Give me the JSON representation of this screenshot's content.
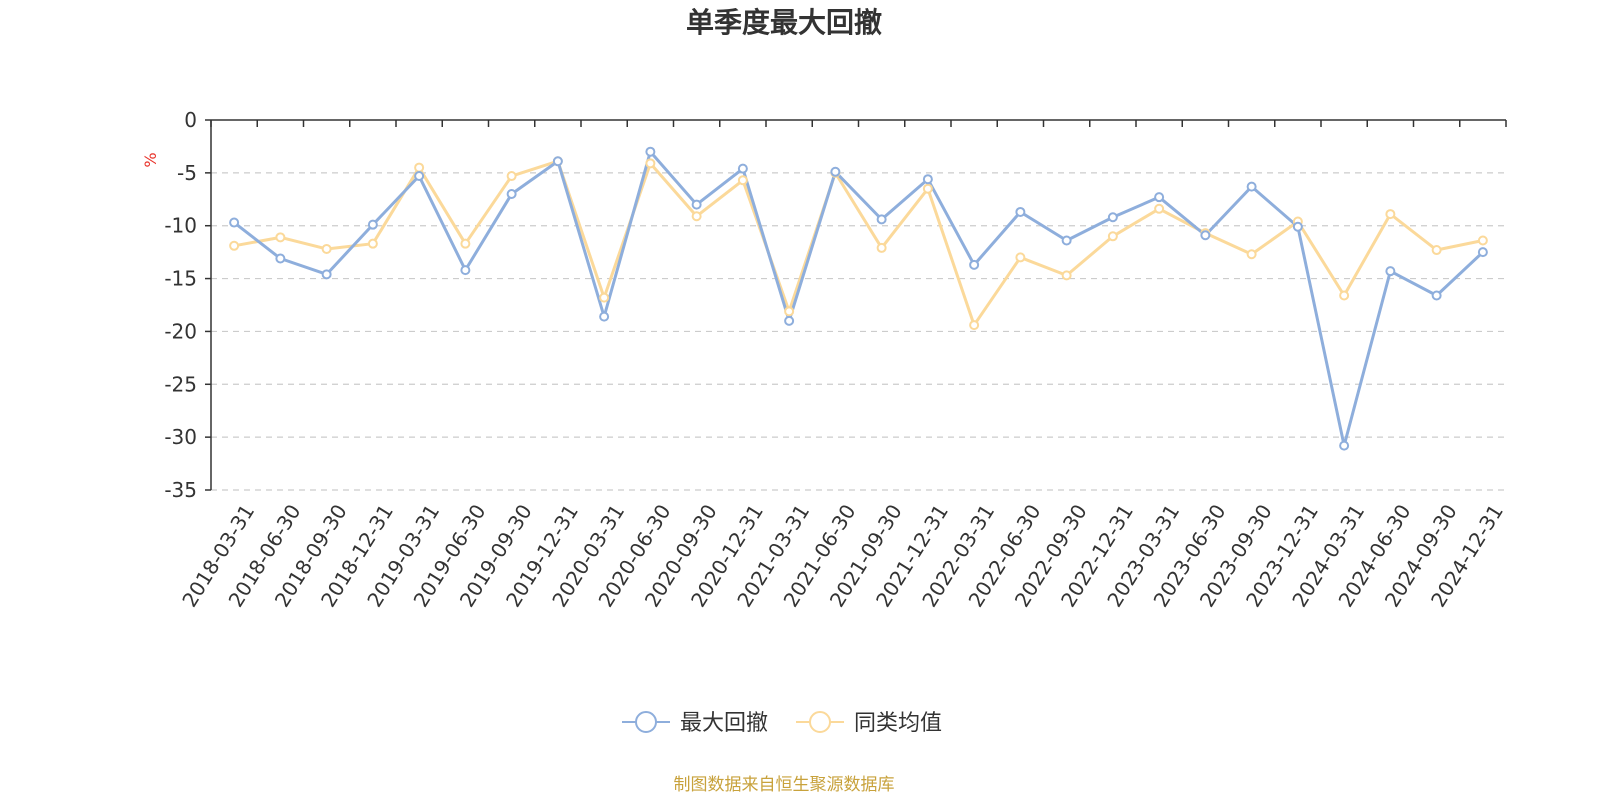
{
  "chart_data": {
    "type": "line",
    "title": "单季度最大回撤",
    "ylabel": "%",
    "ylim": [
      -35,
      0
    ],
    "yticks": [
      0,
      -5,
      -10,
      -15,
      -20,
      -25,
      -30,
      -35
    ],
    "categories": [
      "2018-03-31",
      "2018-06-30",
      "2018-09-30",
      "2018-12-31",
      "2019-03-31",
      "2019-06-30",
      "2019-09-30",
      "2019-12-31",
      "2020-03-31",
      "2020-06-30",
      "2020-09-30",
      "2020-12-31",
      "2021-03-31",
      "2021-06-30",
      "2021-09-30",
      "2021-12-31",
      "2022-03-31",
      "2022-06-30",
      "2022-09-30",
      "2022-12-31",
      "2023-03-31",
      "2023-06-30",
      "2023-09-30",
      "2023-12-31",
      "2024-03-31",
      "2024-06-30",
      "2024-09-30",
      "2024-12-31"
    ],
    "series": [
      {
        "name": "最大回撤",
        "color": "#8eaedc",
        "values": [
          -9.7,
          -13.1,
          -14.6,
          -9.9,
          -5.3,
          -14.2,
          -7.0,
          -3.9,
          -18.6,
          -3.0,
          -8.0,
          -4.6,
          -19.0,
          -4.9,
          -9.4,
          -5.6,
          -13.7,
          -8.7,
          -11.4,
          -9.2,
          -7.3,
          -10.9,
          -6.3,
          -10.1,
          -30.8,
          -14.3,
          -16.6,
          -12.5
        ]
      },
      {
        "name": "同类均值",
        "color": "#fbd99a",
        "values": [
          -11.9,
          -11.1,
          -12.2,
          -11.7,
          -4.5,
          -11.7,
          -5.3,
          -3.9,
          -16.8,
          -4.1,
          -9.1,
          -5.7,
          -18.1,
          -5.0,
          -12.1,
          -6.5,
          -19.4,
          -13.0,
          -14.7,
          -11.0,
          -8.4,
          -10.7,
          -12.7,
          -9.6,
          -16.6,
          -8.9,
          -12.3,
          -11.4
        ]
      }
    ],
    "legend_position": "bottom-center",
    "grid": "horizontal-dashed"
  },
  "footer": {
    "source_text": "制图数据来自恒生聚源数据库",
    "source_color": "#c8a23c",
    "unit_color": "#e8322a"
  }
}
